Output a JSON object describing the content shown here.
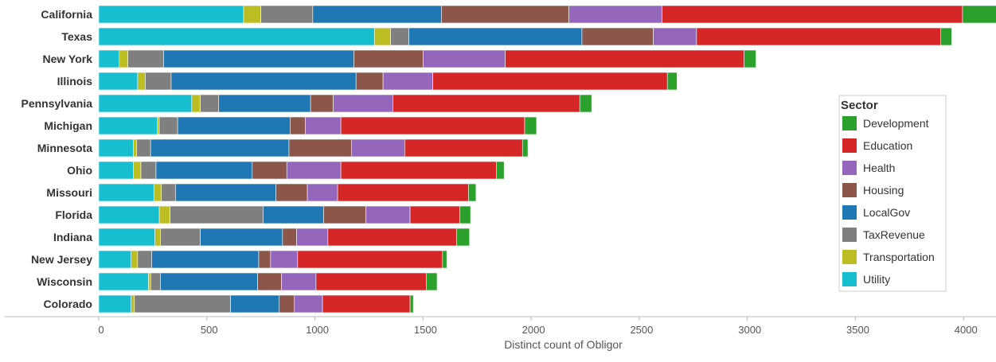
{
  "chart_data": {
    "type": "bar",
    "orientation": "horizontal",
    "stacked": true,
    "xlabel": "Distinct count of Obligor",
    "xlim": [
      0,
      4150
    ],
    "xticks": [
      0,
      500,
      1000,
      1500,
      2000,
      2500,
      3000,
      3500,
      4000
    ],
    "grid": false,
    "legend": {
      "title": "Sector",
      "position": "right"
    },
    "categories": [
      "California",
      "Texas",
      "New York",
      "Illinois",
      "Pennsylvania",
      "Michigan",
      "Minnesota",
      "Ohio",
      "Missouri",
      "Florida",
      "Indiana",
      "New Jersey",
      "Wisconsin",
      "Colorado"
    ],
    "series": [
      {
        "name": "Utility",
        "color": "#17becf",
        "values": [
          670,
          1275,
          95,
          180,
          430,
          270,
          160,
          160,
          255,
          280,
          260,
          150,
          230,
          150
        ]
      },
      {
        "name": "Transportation",
        "color": "#bcbd22",
        "values": [
          80,
          75,
          40,
          35,
          40,
          10,
          15,
          35,
          35,
          50,
          25,
          30,
          10,
          15
        ]
      },
      {
        "name": "TaxRevenue",
        "color": "#7f7f7f",
        "values": [
          240,
          85,
          165,
          120,
          85,
          85,
          65,
          70,
          65,
          430,
          185,
          65,
          45,
          445
        ]
      },
      {
        "name": "LocalGov",
        "color": "#1f77b4",
        "values": [
          595,
          800,
          880,
          855,
          425,
          520,
          640,
          445,
          465,
          280,
          380,
          495,
          450,
          225
        ]
      },
      {
        "name": "Housing",
        "color": "#8c564b",
        "values": [
          590,
          330,
          320,
          125,
          105,
          70,
          290,
          160,
          145,
          195,
          65,
          55,
          110,
          70
        ]
      },
      {
        "name": "Health",
        "color": "#9467bd",
        "values": [
          430,
          200,
          380,
          230,
          275,
          165,
          245,
          250,
          140,
          205,
          145,
          125,
          160,
          130
        ]
      },
      {
        "name": "Education",
        "color": "#d62728",
        "values": [
          1390,
          1130,
          1105,
          1085,
          865,
          850,
          545,
          720,
          605,
          230,
          595,
          670,
          510,
          405
        ]
      },
      {
        "name": "Development",
        "color": "#2ca02c",
        "values": [
          165,
          50,
          55,
          45,
          55,
          55,
          25,
          35,
          35,
          50,
          60,
          20,
          50,
          15
        ]
      }
    ]
  }
}
